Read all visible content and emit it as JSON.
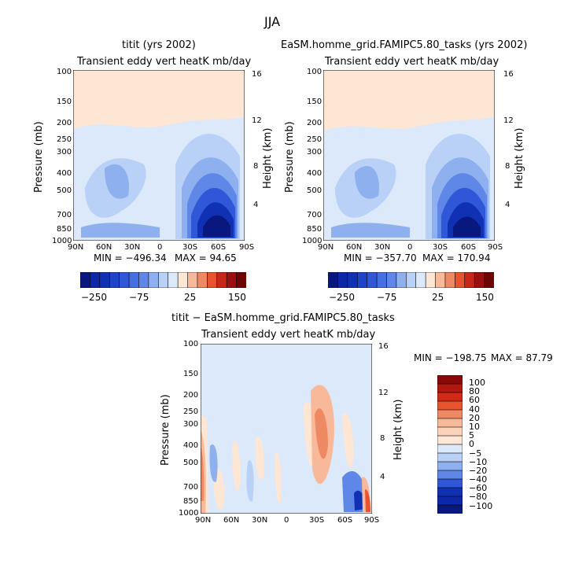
{
  "figure_title": "JJA",
  "chart_data": [
    {
      "type": "heatmap",
      "title": "titit (yrs 2002)",
      "subtitle": "Transient eddy vert heatK mb/day",
      "xlabel": "",
      "ylabel": "Pressure (mb)",
      "y2label": "Height (km)",
      "x_ticks": [
        "90N",
        "60N",
        "30N",
        "0",
        "30S",
        "60S",
        "90S"
      ],
      "y_ticks": [
        "100",
        "150",
        "200",
        "250",
        "300",
        "400",
        "500",
        "700",
        "850",
        "1000"
      ],
      "y2_ticks": [
        "16",
        "12",
        "8",
        "4"
      ],
      "min_label": "MIN = −496.34",
      "max_label": "MAX =  94.65",
      "colorbar_ticks": [
        "−250",
        "−75",
        "25",
        "150"
      ]
    },
    {
      "type": "heatmap",
      "title": "EaSM.homme_grid.FAMIPC5.80_tasks (yrs 2002)",
      "subtitle": "Transient eddy vert heatK mb/day",
      "xlabel": "",
      "ylabel": "Pressure (mb)",
      "y2label": "Height (km)",
      "x_ticks": [
        "90N",
        "60N",
        "30N",
        "0",
        "30S",
        "60S",
        "90S"
      ],
      "y_ticks": [
        "100",
        "150",
        "200",
        "250",
        "300",
        "400",
        "500",
        "700",
        "850",
        "1000"
      ],
      "y2_ticks": [
        "16",
        "12",
        "8",
        "4"
      ],
      "min_label": "MIN = −357.70",
      "max_label": "MAX = 170.94",
      "colorbar_ticks": [
        "−250",
        "−75",
        "25",
        "150"
      ]
    },
    {
      "type": "heatmap",
      "title": "titit − EaSM.homme_grid.FAMIPC5.80_tasks",
      "subtitle": "Transient eddy vert heatK mb/day",
      "xlabel": "",
      "ylabel": "Pressure (mb)",
      "y2label": "Height (km)",
      "x_ticks": [
        "90N",
        "60N",
        "30N",
        "0",
        "30S",
        "60S",
        "90S"
      ],
      "y_ticks": [
        "100",
        "150",
        "200",
        "250",
        "300",
        "400",
        "500",
        "700",
        "850",
        "1000"
      ],
      "y2_ticks": [
        "16",
        "12",
        "8",
        "4"
      ],
      "min_label": "MIN = −198.75",
      "max_label": "MAX =  87.79",
      "colorbar_ticks": [
        "100",
        "80",
        "60",
        "40",
        "20",
        "10",
        "5",
        "0",
        "−5",
        "−10",
        "−20",
        "−40",
        "−60",
        "−80",
        "−100"
      ]
    }
  ]
}
